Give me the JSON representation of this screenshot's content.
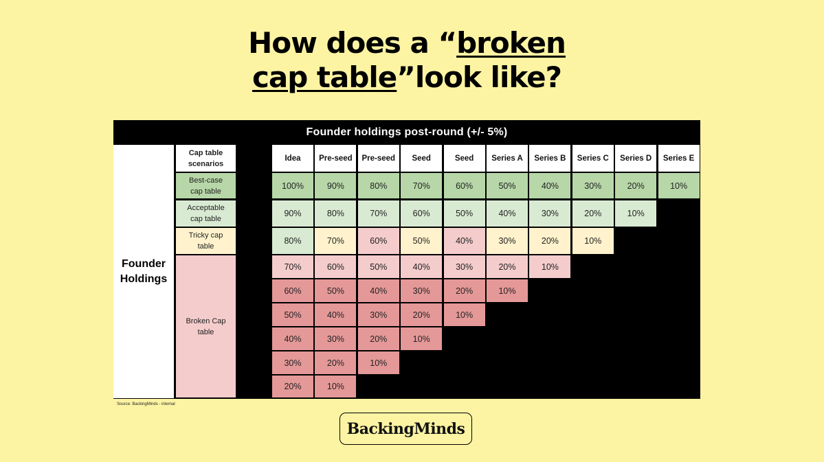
{
  "title": {
    "part1": "How does a “",
    "underlined1": "broken",
    "underlined2": "cap table",
    "part2": "”look like?"
  },
  "chart_data": {
    "type": "table",
    "title": "Founder holdings post-round (+/- 5%)",
    "row_group_label": "Founder Holdings",
    "scenario_header": "Cap table scenarios",
    "columns": [
      "Idea",
      "Pre-seed",
      "Pre-seed",
      "Seed",
      "Seed",
      "Series A",
      "Series B",
      "Series C",
      "Series D",
      "Series E"
    ],
    "scenarios": [
      {
        "label": "Best-case cap table",
        "rows": [
          0
        ],
        "color": "#B7D7A8"
      },
      {
        "label": "Acceptable cap table",
        "rows": [
          1
        ],
        "color": "#D9EAD3"
      },
      {
        "label": "Tricky cap table",
        "rows": [
          2
        ],
        "color": "#FFF2CC"
      },
      {
        "label": "Broken Cap table",
        "rows": [
          3,
          4,
          5,
          6,
          7,
          8
        ],
        "color": "#F4CCCC"
      }
    ],
    "rows": [
      [
        "100%",
        "90%",
        "80%",
        "70%",
        "60%",
        "50%",
        "40%",
        "30%",
        "20%",
        "10%"
      ],
      [
        "90%",
        "80%",
        "70%",
        "60%",
        "50%",
        "40%",
        "30%",
        "20%",
        "10%"
      ],
      [
        "80%",
        "70%",
        "60%",
        "50%",
        "40%",
        "30%",
        "20%",
        "10%"
      ],
      [
        "70%",
        "60%",
        "50%",
        "40%",
        "30%",
        "20%",
        "10%"
      ],
      [
        "60%",
        "50%",
        "40%",
        "30%",
        "20%",
        "10%"
      ],
      [
        "50%",
        "40%",
        "30%",
        "20%",
        "10%"
      ],
      [
        "40%",
        "30%",
        "20%",
        "10%"
      ],
      [
        "30%",
        "20%",
        "10%"
      ],
      [
        "20%",
        "10%"
      ]
    ],
    "cell_colors": [
      [
        "#B7D7A8",
        "#B7D7A8",
        "#B7D7A8",
        "#B7D7A8",
        "#B7D7A8",
        "#B7D7A8",
        "#B7D7A8",
        "#B7D7A8",
        "#B7D7A8",
        "#B7D7A8"
      ],
      [
        "#D9EAD3",
        "#D9EAD3",
        "#D9EAD3",
        "#D9EAD3",
        "#D9EAD3",
        "#D9EAD3",
        "#D9EAD3",
        "#D9EAD3",
        "#D9EAD3"
      ],
      [
        "#D9EAD3",
        "#FFF2CC",
        "#F4CCCC",
        "#FFF2CC",
        "#F4CCCC",
        "#FFF2CC",
        "#FFF2CC",
        "#FFF2CC"
      ],
      [
        "#F4CCCC",
        "#F4CCCC",
        "#F4CCCC",
        "#F4CCCC",
        "#F4CCCC",
        "#F4CCCC",
        "#F4CCCC"
      ],
      [
        "#E59898",
        "#E59898",
        "#E59898",
        "#E59898",
        "#E59898",
        "#E59898"
      ],
      [
        "#E59898",
        "#E59898",
        "#E59898",
        "#E59898",
        "#E59898"
      ],
      [
        "#E59898",
        "#E59898",
        "#E59898",
        "#E59898"
      ],
      [
        "#E59898",
        "#E59898",
        "#E59898"
      ],
      [
        "#E59898",
        "#E59898"
      ]
    ]
  },
  "source": "Source: BackingMinds - internal",
  "logo": "BackingMinds",
  "colors": {
    "background": "#FDF4A3",
    "table_background": "#000000"
  }
}
